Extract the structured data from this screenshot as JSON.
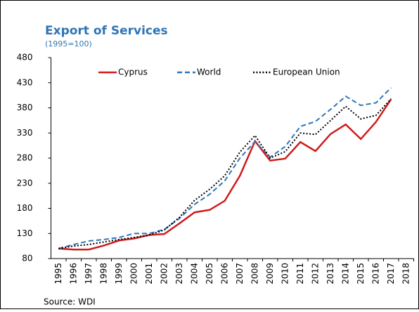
{
  "chart_data": {
    "type": "line",
    "title": "Export of Services",
    "subtitle": "(1995=100)",
    "source": "Source: WDI",
    "categories": [
      "1995",
      "1996",
      "1997",
      "1998",
      "1999",
      "2000",
      "2001",
      "2002",
      "2003",
      "2004",
      "2005",
      "2006",
      "2007",
      "2008",
      "2009",
      "2010",
      "2011",
      "2012",
      "2013",
      "2014",
      "2015",
      "2016",
      "2017",
      "2018"
    ],
    "series": [
      {
        "name": "Cyprus",
        "color": "#d01c1c",
        "dash": "solid",
        "values": [
          100,
          98,
          98,
          106,
          116,
          120,
          127,
          129,
          150,
          172,
          177,
          195,
          245,
          314,
          275,
          279,
          312,
          294,
          328,
          347,
          318,
          352,
          397,
          null
        ]
      },
      {
        "name": "World",
        "color": "#2e75b6",
        "dash": "dashed",
        "values": [
          100,
          108,
          115,
          118,
          122,
          130,
          130,
          138,
          160,
          188,
          208,
          235,
          280,
          313,
          282,
          303,
          343,
          353,
          377,
          403,
          385,
          390,
          420,
          null
        ]
      },
      {
        "name": "European Union",
        "color": "#000000",
        "dash": "dotted",
        "values": [
          100,
          105,
          108,
          113,
          118,
          122,
          127,
          137,
          162,
          196,
          218,
          245,
          292,
          325,
          280,
          293,
          330,
          327,
          355,
          383,
          358,
          365,
          398,
          null
        ]
      }
    ],
    "ylim": [
      80,
      480
    ],
    "yticks": [
      80,
      130,
      180,
      230,
      280,
      330,
      380,
      430,
      480
    ],
    "grid": false,
    "legend": "top"
  }
}
